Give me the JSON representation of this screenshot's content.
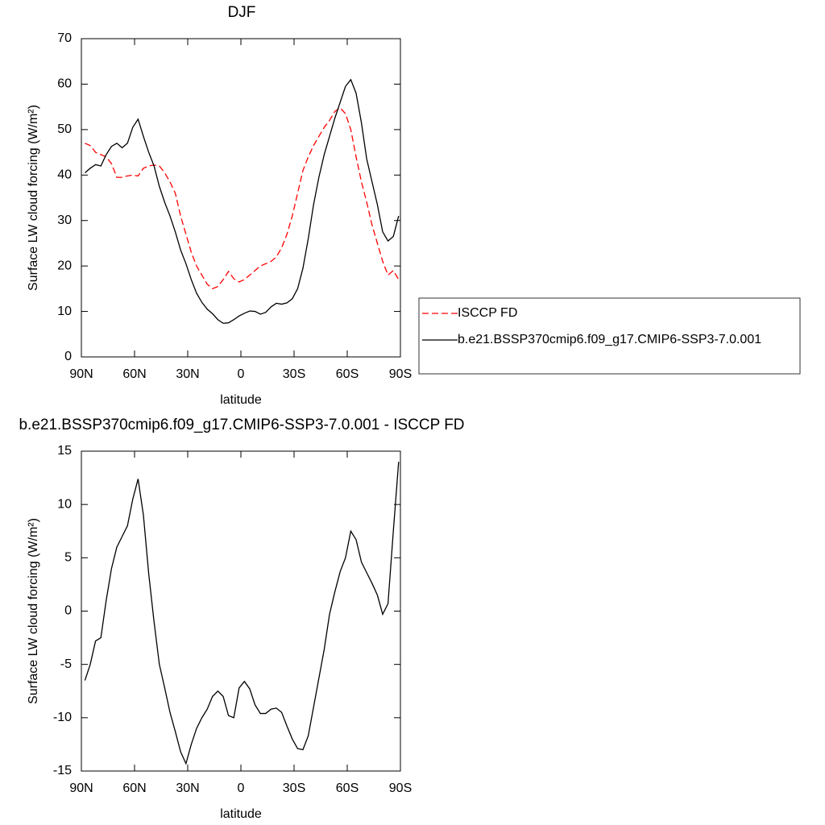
{
  "chart_data": [
    {
      "type": "line",
      "title": "DJF",
      "xlabel": "latitude",
      "ylabel": "Surface LW cloud forcing (W/m²)",
      "x": [
        88,
        85,
        82,
        79,
        76,
        73,
        70,
        67,
        64,
        61,
        58,
        55,
        52,
        49,
        46,
        43,
        40,
        37,
        34,
        31,
        28,
        25,
        22,
        19,
        16,
        13,
        10,
        7,
        4,
        1,
        -2,
        -5,
        -8,
        -11,
        -14,
        -17,
        -20,
        -23,
        -26,
        -29,
        -32,
        -35,
        -38,
        -41,
        -44,
        -47,
        -50,
        -53,
        -56,
        -59,
        -62,
        -65,
        -68,
        -71,
        -74,
        -77,
        -80,
        -83,
        -86,
        -89
      ],
      "series": [
        {
          "name": "ISCCP FD",
          "color": "#ff0000",
          "dash": true,
          "values": [
            47,
            46.5,
            45,
            44.5,
            44,
            42.5,
            39.5,
            39.5,
            39.8,
            40,
            39.8,
            41.5,
            42,
            42.2,
            42,
            40.5,
            38.5,
            36,
            31,
            27,
            23,
            20,
            18,
            16,
            15,
            15.5,
            17,
            18.8,
            17.2,
            16.5,
            17,
            18,
            19,
            20,
            20.5,
            21,
            22,
            24,
            27,
            31,
            36,
            41,
            44,
            46.5,
            48.5,
            50.5,
            52,
            54,
            54.8,
            53.5,
            50,
            44,
            38.5,
            34,
            29,
            25,
            21,
            18,
            19,
            17
          ]
        },
        {
          "name": "b.e21.BSSP370cmip6.f09_g17.CMIP6-SSP3-7.0.001",
          "color": "#000000",
          "dash": false,
          "values": [
            40.5,
            41.5,
            42.3,
            42,
            44.5,
            46.3,
            47,
            46,
            47,
            50.5,
            52.3,
            48.5,
            45,
            42,
            37.5,
            34,
            31,
            27.5,
            23.5,
            20.5,
            17,
            14,
            12,
            10.5,
            9.5,
            8.2,
            7.4,
            7.5,
            8.2,
            9,
            9.6,
            10.1,
            10,
            9.4,
            9.8,
            11,
            11.8,
            11.6,
            11.9,
            12.8,
            15,
            19.5,
            26,
            33.5,
            39.5,
            44.5,
            48.5,
            52.5,
            56,
            59.5,
            61,
            58,
            51.5,
            43.5,
            38.5,
            33.5,
            27.5,
            25.5,
            26.5,
            31
          ]
        }
      ],
      "xlim": [
        90,
        -90
      ],
      "xticks": [
        {
          "value": 90,
          "label": "90N"
        },
        {
          "value": 60,
          "label": "60N"
        },
        {
          "value": 30,
          "label": "30N"
        },
        0,
        {
          "value": -30,
          "label": "30S"
        },
        {
          "value": -60,
          "label": "60S"
        },
        {
          "value": -90,
          "label": "90S"
        }
      ],
      "ylim": [
        0,
        70
      ],
      "yticks": [
        0,
        10,
        20,
        30,
        40,
        50,
        60,
        70
      ],
      "legend": "right"
    },
    {
      "type": "line",
      "title": "b.e21.BSSP370cmip6.f09_g17.CMIP6-SSP3-7.0.001 - ISCCP FD",
      "xlabel": "latitude",
      "ylabel": "Surface LW cloud forcing (W/m²)",
      "x": [
        88,
        85,
        82,
        79,
        76,
        73,
        70,
        67,
        64,
        61,
        58,
        55,
        52,
        49,
        46,
        43,
        40,
        37,
        34,
        31,
        28,
        25,
        22,
        19,
        16,
        13,
        10,
        7,
        4,
        1,
        -2,
        -5,
        -8,
        -11,
        -14,
        -17,
        -20,
        -23,
        -26,
        -29,
        -32,
        -35,
        -38,
        -41,
        -44,
        -47,
        -50,
        -53,
        -56,
        -59,
        -62,
        -65,
        -68,
        -71,
        -74,
        -77,
        -80,
        -83,
        -86,
        -89
      ],
      "values": [
        -6.5,
        -5,
        -2.8,
        -2.5,
        1,
        4,
        6,
        7,
        8,
        10.5,
        12.4,
        9,
        3.5,
        -1,
        -5,
        -7.2,
        -9.5,
        -11.3,
        -13.2,
        -14.3,
        -12.5,
        -11,
        -10,
        -9.2,
        -8,
        -7.5,
        -8,
        -9.8,
        -10,
        -7.2,
        -6.6,
        -7.3,
        -8.8,
        -9.6,
        -9.6,
        -9.2,
        -9.1,
        -9.5,
        -10.8,
        -12,
        -12.9,
        -13,
        -11.7,
        -9,
        -6.3,
        -3.6,
        -0.3,
        1.8,
        3.7,
        5,
        7.5,
        6.7,
        4.6,
        3.6,
        2.6,
        1.5,
        -0.3,
        0.7,
        7.5,
        14
      ],
      "color": "#000000",
      "xlim": [
        90,
        -90
      ],
      "xticks": [
        {
          "value": 90,
          "label": "90N"
        },
        {
          "value": 60,
          "label": "60N"
        },
        {
          "value": 30,
          "label": "30N"
        },
        0,
        {
          "value": -30,
          "label": "30S"
        },
        {
          "value": -60,
          "label": "60S"
        },
        {
          "value": -90,
          "label": "90S"
        }
      ],
      "ylim": [
        -15,
        15
      ],
      "yticks": [
        -15,
        -10,
        -5,
        0,
        5,
        10,
        15
      ]
    }
  ]
}
